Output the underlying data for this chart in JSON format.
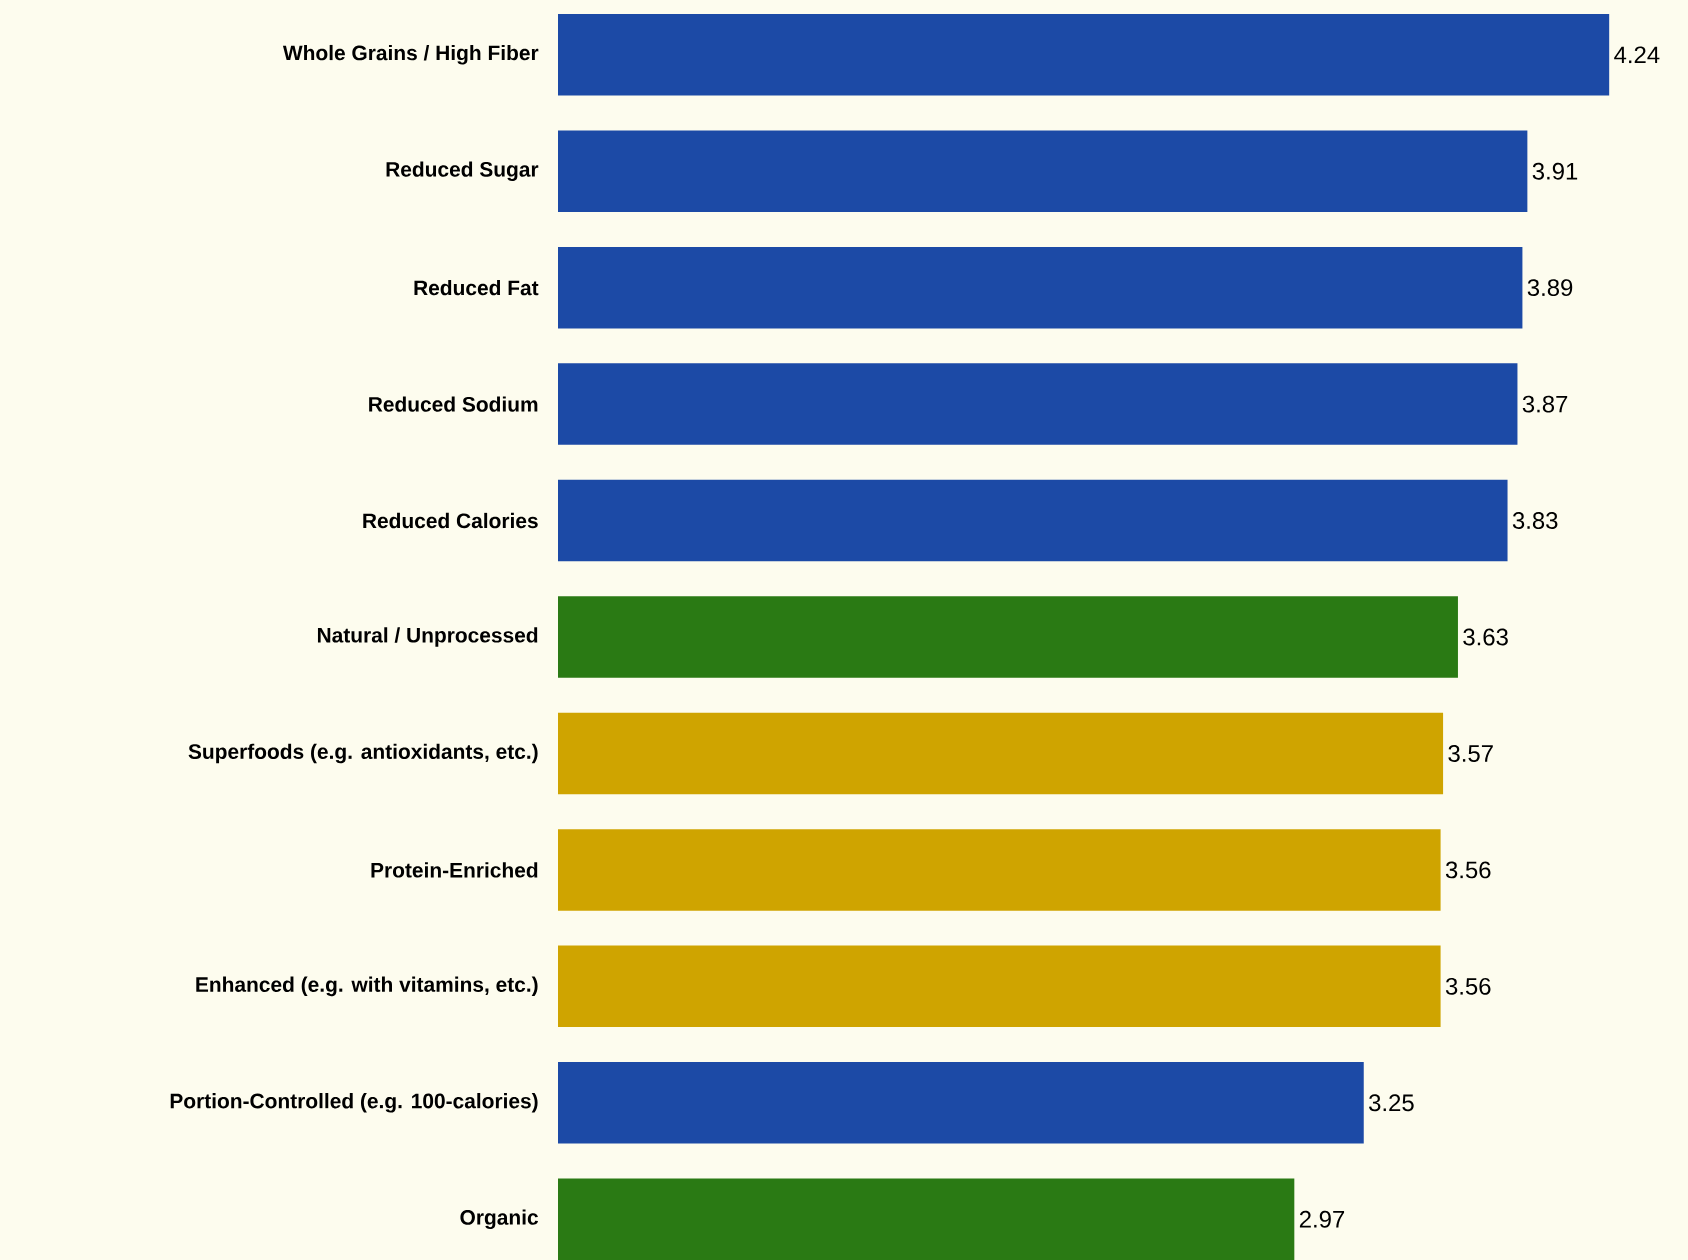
{
  "chart_data": {
    "type": "bar",
    "orientation": "horizontal",
    "data_labels": true,
    "categories": [
      "Whole Grains / High Fiber",
      "Reduced Sugar",
      "Reduced Fat",
      "Reduced Sodium",
      "Reduced Calories",
      "Natural / Unprocessed",
      "Superfoods (e.g. antioxidants, etc.)",
      "Protein-Enriched",
      "Enhanced (e.g. with vitamins, etc.)",
      "Portion-Controlled (e.g. 100-calories)",
      "Organic"
    ],
    "values": [
      4.24,
      3.91,
      3.89,
      3.87,
      3.83,
      3.63,
      3.57,
      3.56,
      3.56,
      3.25,
      2.97
    ],
    "colors": [
      "#1c4aa6",
      "#1c4aa6",
      "#1c4aa6",
      "#1c4aa6",
      "#1c4aa6",
      "#2a7a14",
      "#cfa400",
      "#cfa400",
      "#cfa400",
      "#1c4aa6",
      "#2a7a14"
    ]
  }
}
